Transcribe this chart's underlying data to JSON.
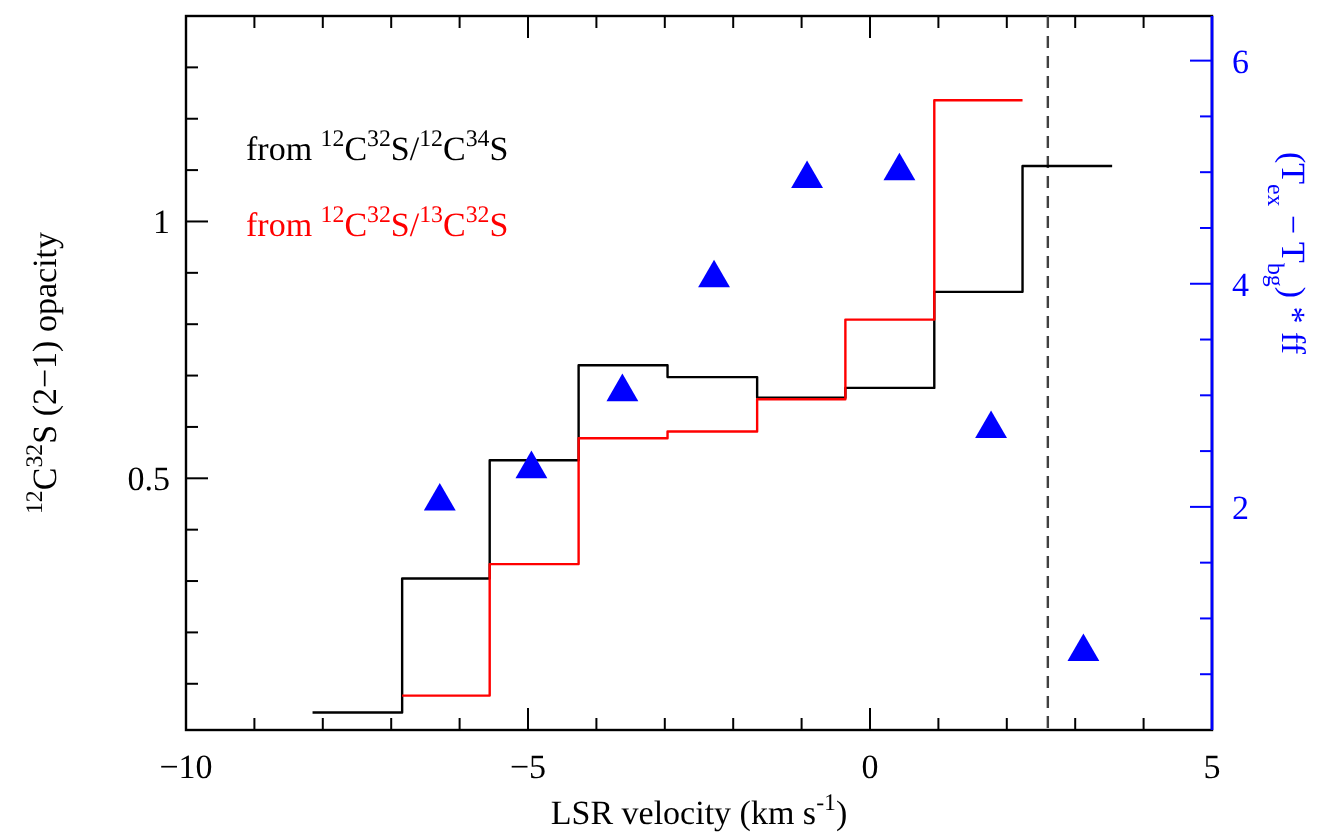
{
  "chart_data": {
    "type": "step",
    "xlabel": "LSR velocity (km s$^{-1}$)",
    "ylabel": "$^{12}$C$^{32}$S (2−1) opacity",
    "y2label": "(T$_{ex}$ − T$_{bg}$) * ff",
    "xlim": [
      -10,
      5
    ],
    "xticks": [
      {
        "value": -10,
        "label": "−10"
      },
      {
        "value": -9,
        "label": null
      },
      {
        "value": -8,
        "label": null
      },
      {
        "value": -7,
        "label": null
      },
      {
        "value": -6,
        "label": null
      },
      {
        "value": -5,
        "label": "−5"
      },
      {
        "value": -4,
        "label": null
      },
      {
        "value": -3,
        "label": null
      },
      {
        "value": -2,
        "label": null
      },
      {
        "value": -1,
        "label": null
      },
      0,
      {
        "value": 1,
        "label": null
      },
      {
        "value": 2,
        "label": null
      },
      {
        "value": 3,
        "label": null
      },
      {
        "value": 4,
        "label": null
      },
      5
    ],
    "ylim": [
      0.01,
      1.4
    ],
    "yticks": [
      {
        "value": 0.1,
        "label": null
      },
      {
        "value": 0.2,
        "label": null
      },
      {
        "value": 0.3,
        "label": null
      },
      {
        "value": 0.4,
        "label": null
      },
      0.5,
      {
        "value": 0.6,
        "label": null
      },
      {
        "value": 0.7,
        "label": null
      },
      {
        "value": 0.8,
        "label": null
      },
      {
        "value": 0.9,
        "label": null
      },
      1,
      {
        "value": 1.1,
        "label": null
      },
      {
        "value": 1.2,
        "label": null
      },
      {
        "value": 1.3,
        "label": null
      }
    ],
    "y2lim": [
      0,
      6.4
    ],
    "y2ticks": [
      {
        "value": 0.5,
        "label": null
      },
      {
        "value": 1,
        "label": null
      },
      {
        "value": 1.5,
        "label": null
      },
      2,
      {
        "value": 2.5,
        "label": null
      },
      {
        "value": 3,
        "label": null
      },
      {
        "value": 3.5,
        "label": null
      },
      4,
      {
        "value": 4.5,
        "label": null
      },
      {
        "value": 5,
        "label": null
      },
      {
        "value": 5.5,
        "label": null
      },
      6
    ],
    "grid": false,
    "ref_lines": [
      {
        "axis": "x",
        "value": 2.6,
        "color": "#404040",
        "line_style": "dashed"
      }
    ],
    "series": [
      {
        "name": "from $^{12}$C$^{32}$S/$^{12}$C$^{34}$S",
        "color": "#000000",
        "x": [
          -8.15,
          -6.84,
          -5.56,
          -4.26,
          -2.96,
          -1.65,
          -0.36,
          0.94,
          2.23,
          3.54
        ],
        "values": [
          0.044,
          0.305,
          0.535,
          0.72,
          0.697,
          0.657,
          0.676,
          0.863,
          1.108,
          1.108
        ]
      },
      {
        "name": "from $^{12}$C$^{32}$S/$^{13}$C$^{32}$S",
        "color": "#ff0000",
        "x": [
          -6.84,
          -5.56,
          -4.26,
          -2.96,
          -1.65,
          -0.36,
          0.94,
          2.23
        ],
        "values": [
          0.077,
          0.333,
          0.578,
          0.591,
          0.654,
          0.809,
          1.236,
          1.236
        ]
      },
      {
        "type": "scatter",
        "axis": "y2",
        "marker": "triangle",
        "color": "#0000ff",
        "x": [
          -6.29,
          -4.95,
          -3.62,
          -2.28,
          -0.92,
          0.43,
          1.77,
          3.12
        ],
        "values": [
          2.05,
          2.34,
          3.03,
          4.05,
          4.94,
          5.01,
          2.7,
          0.7
        ]
      }
    ]
  }
}
